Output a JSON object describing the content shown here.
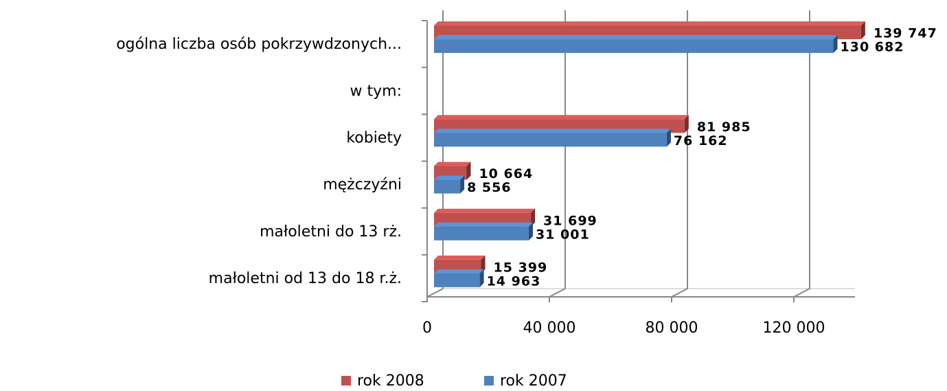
{
  "chart_data": {
    "type": "bar",
    "orientation": "horizontal",
    "categories": [
      "ogólna liczba osób pokrzywdzonych...",
      "w tym:",
      "kobiety",
      "mężczyźni",
      "małoletni do 13 rż.",
      "małoletni od 13 do 18 r.ż."
    ],
    "series": [
      {
        "name": "rok 2008",
        "color": "#c0504d",
        "values": [
          139747,
          null,
          81985,
          10664,
          31699,
          15399
        ],
        "value_labels": [
          "139 747",
          null,
          "81 985",
          "10 664",
          "31 699",
          "15 399"
        ]
      },
      {
        "name": "rok 2007",
        "color": "#4f81bd",
        "values": [
          130682,
          null,
          76162,
          8556,
          31001,
          14963
        ],
        "value_labels": [
          "130 682",
          null,
          "76 162",
          "8 556",
          "31 001",
          "14 963"
        ]
      }
    ],
    "xlim": [
      0,
      140000
    ],
    "xticks": [
      0,
      {
        "value": 40000,
        "label": "40 000"
      },
      {
        "value": 80000,
        "label": "80 000"
      },
      {
        "value": 120000,
        "label": "120 000"
      }
    ],
    "grid": true,
    "legend": "bottom"
  }
}
